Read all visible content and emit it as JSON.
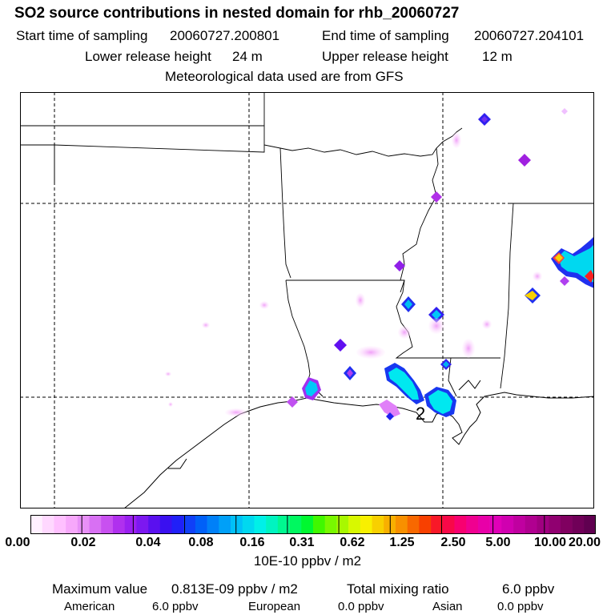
{
  "header": {
    "title": "SO2 source contributions in nested domain for rhb_20060727",
    "start_label": "Start time of sampling",
    "start_value": "20060727.200801",
    "end_label": "End time of sampling",
    "end_value": "20060727.204101",
    "lower_label": "Lower release height",
    "lower_value": "24 m",
    "upper_label": "Upper release height",
    "upper_value": "12 m",
    "met_line": "Meteorological data used are from GFS"
  },
  "map": {
    "site_label": "2",
    "background": "#ffffff",
    "line_color": "#000000"
  },
  "colorbar": {
    "tick_labels": [
      "0.00",
      "0.02",
      "0.04",
      "0.08",
      "0.16",
      "0.31",
      "0.62",
      "1.25",
      "2.50",
      "5.00",
      "10.00",
      "20.00"
    ],
    "colors": [
      "#fff0ff",
      "#ffd8ff",
      "#ffc0ff",
      "#f7a8fb",
      "#e890f7",
      "#d870f3",
      "#c850f0",
      "#b030ee",
      "#9a20f0",
      "#7c18f0",
      "#5a10ef",
      "#3a10f0",
      "#2020f8",
      "#1040f8",
      "#0060f8",
      "#0080f8",
      "#00a0f8",
      "#00c0f8",
      "#00d8f0",
      "#00f0e8",
      "#00f4c0",
      "#00f890",
      "#00f860",
      "#00f830",
      "#40f800",
      "#78f800",
      "#a8f800",
      "#d8f800",
      "#f8f000",
      "#f8d000",
      "#f8b000",
      "#f89000",
      "#f86800",
      "#f84000",
      "#f81828",
      "#f80848",
      "#f80070",
      "#f00090",
      "#e800a8",
      "#e000b8",
      "#d000b0",
      "#c000a0",
      "#b00090",
      "#a00080",
      "#900070",
      "#800060",
      "#700058",
      "#600050"
    ],
    "units": "10E-10 ppbv / m2"
  },
  "footer": {
    "max_label": "Maximum value",
    "max_value": "0.813E-09 ppbv / m2",
    "total_label": "Total mixing ratio",
    "total_value": "6.0 ppbv",
    "american_label": "American",
    "american_value": "6.0 ppbv",
    "european_label": "European",
    "european_value": "0.0 ppbv",
    "asian_label": "Asian",
    "asian_value": "0.0 ppbv"
  }
}
